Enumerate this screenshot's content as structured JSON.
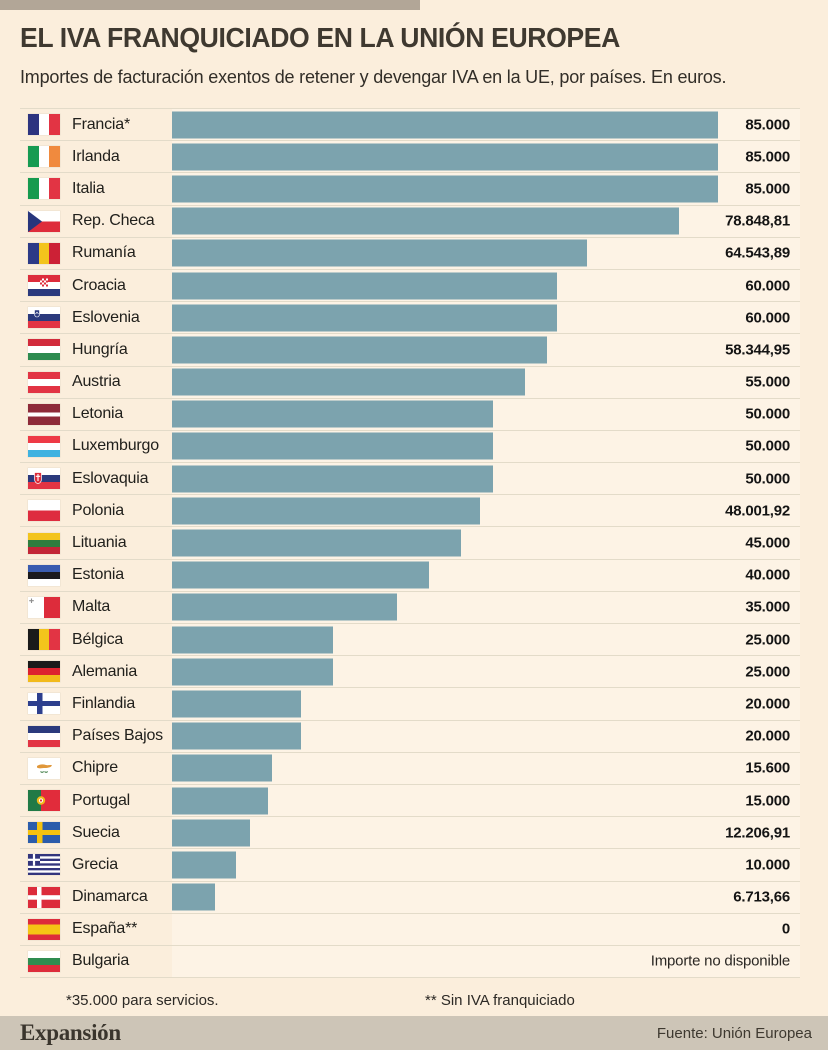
{
  "header": {
    "title": "EL IVA FRANQUICIADO EN LA UNIÓN EUROPEA",
    "subtitle": "Importes de facturación exentos de retener y devengar IVA en la UE, por países. En euros."
  },
  "footnotes": {
    "left": "*35.000 para servicios.",
    "right": "** Sin IVA franquiciado"
  },
  "footer": {
    "brand": "Expansión",
    "source": "Fuente: Unión Europea"
  },
  "colors": {
    "background": "#fbeedc",
    "bar": "#7ca3ae",
    "accent_top": "#b2a697",
    "footer_bar": "#cdc5b7",
    "separator": "#e3dbc9",
    "track": "#fdf3e5",
    "title": "#3f3930"
  },
  "chart_data": {
    "type": "bar",
    "orientation": "horizontal",
    "title": "EL IVA FRANQUICIADO EN LA UNIÓN EUROPEA",
    "subtitle": "Importes de facturación exentos de retener y devengar IVA en la UE, por países. En euros.",
    "unit": "euros",
    "max_value": 85000,
    "legend": "none",
    "grid": "row-separators-only",
    "rows": [
      {
        "country": "Francia*",
        "flag": "fr",
        "value": 85000,
        "label": "85.000"
      },
      {
        "country": "Irlanda",
        "flag": "ie",
        "value": 85000,
        "label": "85.000"
      },
      {
        "country": "Italia",
        "flag": "it",
        "value": 85000,
        "label": "85.000"
      },
      {
        "country": "Rep. Checa",
        "flag": "cz",
        "value": 78848.81,
        "label": "78.848,81"
      },
      {
        "country": "Rumanía",
        "flag": "ro",
        "value": 64543.89,
        "label": "64.543,89"
      },
      {
        "country": "Croacia",
        "flag": "hr",
        "value": 60000,
        "label": "60.000"
      },
      {
        "country": "Eslovenia",
        "flag": "si",
        "value": 60000,
        "label": "60.000"
      },
      {
        "country": "Hungría",
        "flag": "hu",
        "value": 58344.95,
        "label": "58.344,95"
      },
      {
        "country": "Austria",
        "flag": "at",
        "value": 55000,
        "label": "55.000"
      },
      {
        "country": "Letonia",
        "flag": "lv",
        "value": 50000,
        "label": "50.000"
      },
      {
        "country": "Luxemburgo",
        "flag": "lu",
        "value": 50000,
        "label": "50.000"
      },
      {
        "country": "Eslovaquia",
        "flag": "sk",
        "value": 50000,
        "label": "50.000"
      },
      {
        "country": "Polonia",
        "flag": "pl",
        "value": 48001.92,
        "label": "48.001,92"
      },
      {
        "country": "Lituania",
        "flag": "lt",
        "value": 45000,
        "label": "45.000"
      },
      {
        "country": "Estonia",
        "flag": "ee",
        "value": 40000,
        "label": "40.000"
      },
      {
        "country": "Malta",
        "flag": "mt",
        "value": 35000,
        "label": "35.000"
      },
      {
        "country": "Bélgica",
        "flag": "be",
        "value": 25000,
        "label": "25.000"
      },
      {
        "country": "Alemania",
        "flag": "de",
        "value": 25000,
        "label": "25.000"
      },
      {
        "country": "Finlandia",
        "flag": "fi",
        "value": 20000,
        "label": "20.000"
      },
      {
        "country": "Países Bajos",
        "flag": "nl",
        "value": 20000,
        "label": "20.000"
      },
      {
        "country": "Chipre",
        "flag": "cy",
        "value": 15600,
        "label": "15.600"
      },
      {
        "country": "Portugal",
        "flag": "pt",
        "value": 15000,
        "label": "15.000"
      },
      {
        "country": "Suecia",
        "flag": "se",
        "value": 12206.91,
        "label": "12.206,91"
      },
      {
        "country": "Grecia",
        "flag": "gr",
        "value": 10000,
        "label": "10.000"
      },
      {
        "country": "Dinamarca",
        "flag": "dk",
        "value": 6713.66,
        "label": "6.713,66"
      },
      {
        "country": "España**",
        "flag": "es",
        "value": 0,
        "label": "0"
      },
      {
        "country": "Bulgaria",
        "flag": "bg",
        "value": null,
        "label": "Importe no disponible"
      }
    ]
  }
}
